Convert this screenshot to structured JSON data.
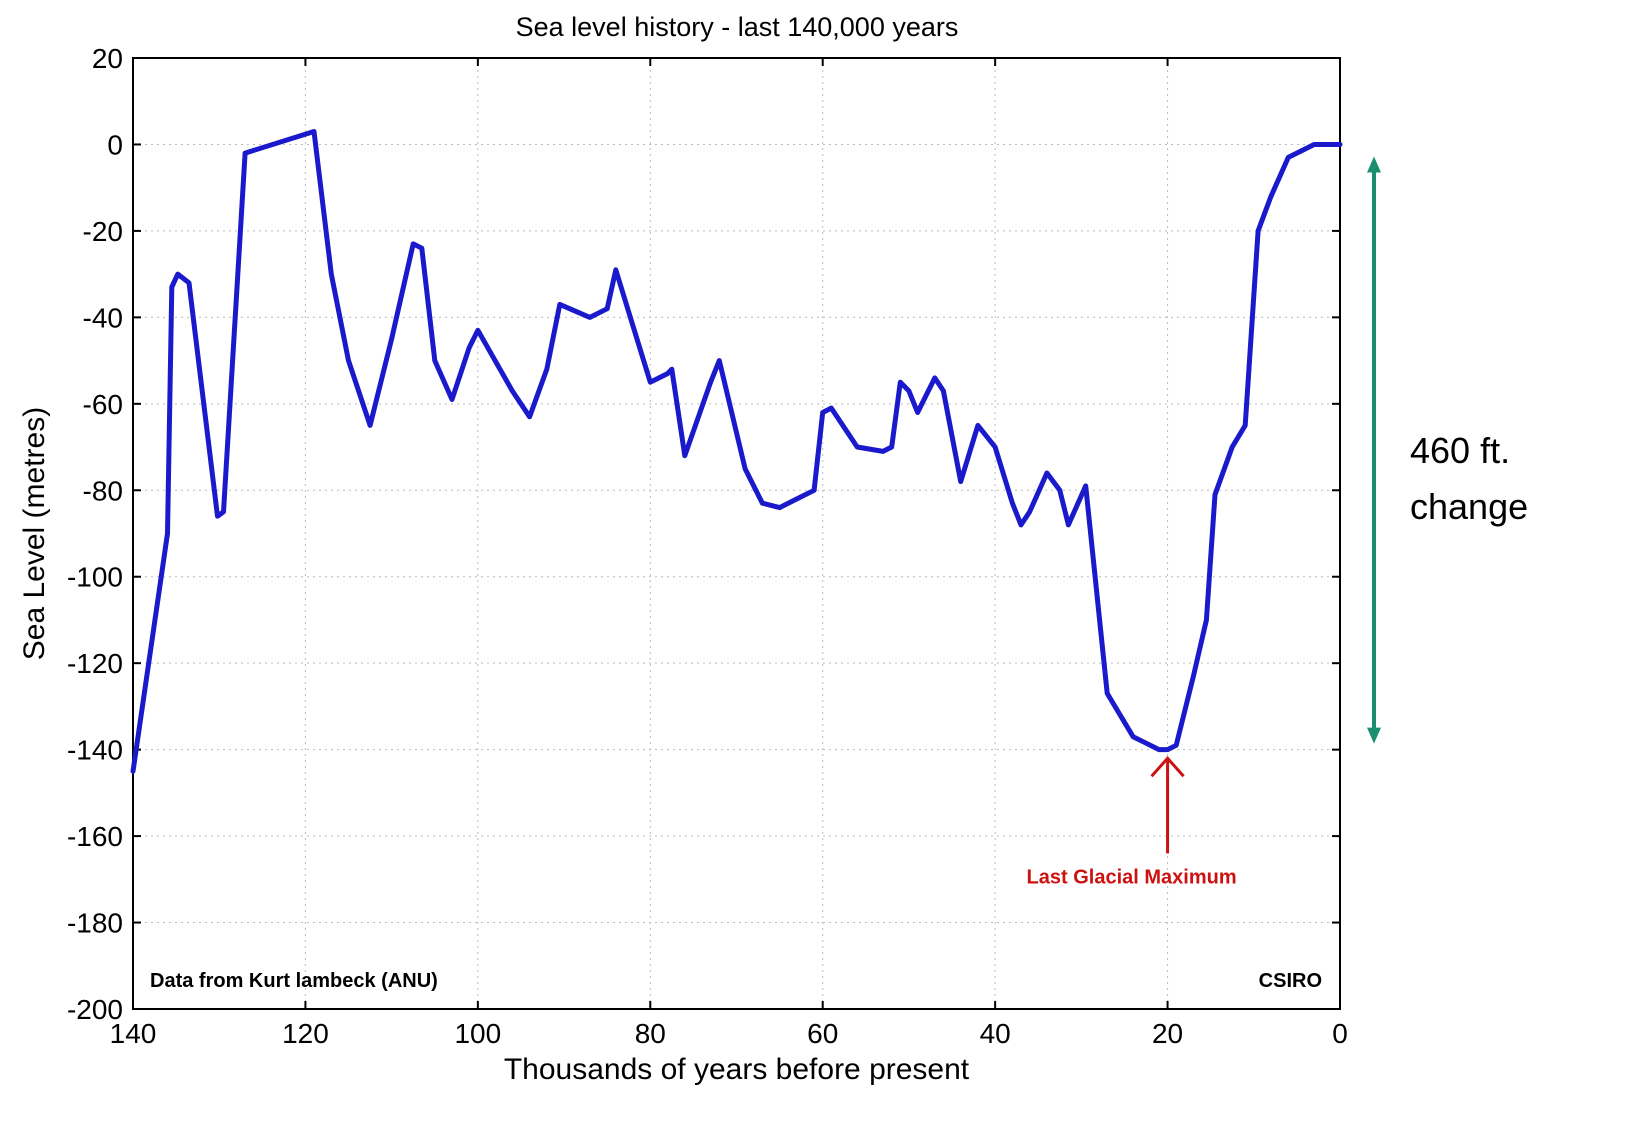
{
  "chart_data": {
    "type": "line",
    "title": "Sea level history - last 140,000 years",
    "xlabel": "Thousands of years before present",
    "ylabel": "Sea Level (metres)",
    "xlim": [
      140,
      0
    ],
    "ylim": [
      -200,
      20
    ],
    "x_reversed": true,
    "grid": true,
    "xticks": [
      140,
      120,
      100,
      80,
      60,
      40,
      20,
      0
    ],
    "yticks": [
      20,
      0,
      -20,
      -40,
      -60,
      -80,
      -100,
      -120,
      -140,
      -160,
      -180,
      -200
    ],
    "series": [
      {
        "color": "#1a1acc",
        "x": [
          140,
          136,
          135.5,
          134.8,
          133.5,
          130.2,
          129.5,
          127,
          119,
          117,
          115,
          112.5,
          110,
          107.5,
          106.5,
          105,
          103,
          101,
          100,
          96,
          94,
          92,
          90.5,
          87,
          85,
          84,
          82,
          80,
          78,
          77.5,
          76,
          73,
          72,
          69,
          67,
          65,
          63,
          61,
          60,
          59,
          56,
          53,
          52,
          51,
          50,
          49,
          47,
          46,
          44,
          42,
          40,
          38,
          37,
          36,
          34,
          32.5,
          31.5,
          29.5,
          27,
          24,
          21,
          20,
          19,
          17,
          15.5,
          14.5,
          12.5,
          11,
          9.5,
          8,
          6,
          3,
          0
        ],
        "y": [
          -145,
          -90,
          -33,
          -30,
          -32,
          -86,
          -85,
          -2,
          3,
          -30,
          -50,
          -65,
          -45,
          -23,
          -24,
          -50,
          -59,
          -47,
          -43,
          -57,
          -63,
          -52,
          -37,
          -40,
          -38,
          -29,
          -42,
          -55,
          -53,
          -52,
          -72,
          -55,
          -50,
          -75,
          -83,
          -84,
          -82,
          -80,
          -62,
          -61,
          -70,
          -71,
          -70,
          -55,
          -57,
          -62,
          -54,
          -57,
          -78,
          -65,
          -70,
          -83,
          -88,
          -85,
          -76,
          -80,
          -88,
          -79,
          -127,
          -137,
          -140,
          -140,
          -139,
          -123,
          -110,
          -81,
          -70,
          -65,
          -20,
          -12,
          -3,
          0,
          0
        ]
      }
    ],
    "annotations": {
      "source": "Data from Kurt lambeck (ANU)",
      "credit": "CSIRO",
      "lgm_label": "Last Glacial Maximum",
      "lgm_x": 20,
      "side_label_line1": "460 ft.",
      "side_label_line2": "change",
      "span_top": 0,
      "span_bottom": -140
    },
    "colors": {
      "line": "#1a1acc",
      "lgm": "#cc1111",
      "span": "#1a8f6f",
      "grid": "#bbbbbb"
    }
  }
}
